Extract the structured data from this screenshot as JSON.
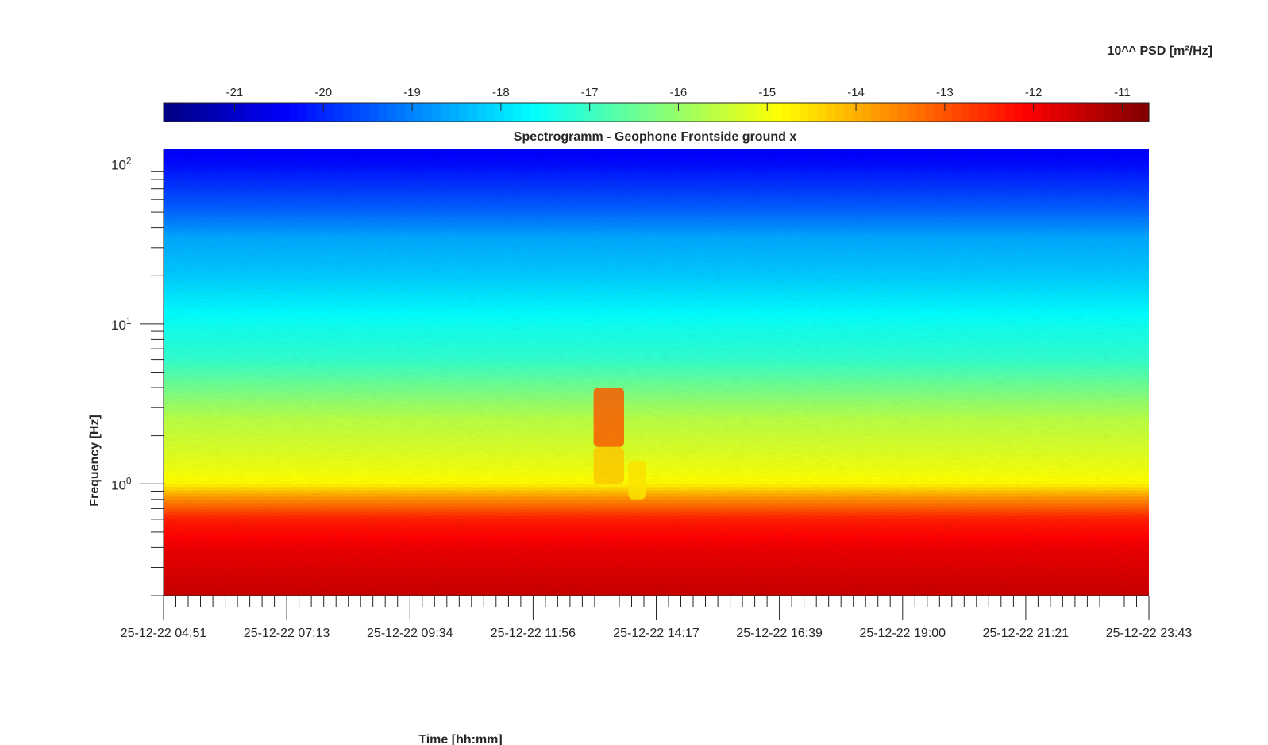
{
  "chart_data": {
    "type": "heatmap",
    "title": "Spectrogramm - Geophone Frontside ground x",
    "xlabel": "Time [hh:mm]",
    "ylabel": "Frequency [Hz]",
    "colorbar": {
      "label": "10^^ PSD [m²/Hz]",
      "ticks": [
        "-21",
        "-20",
        "-19",
        "-18",
        "-17",
        "-16",
        "-15",
        "-14",
        "-13",
        "-12",
        "-11"
      ],
      "tick_values": [
        -21,
        -20,
        -19,
        -18,
        -17,
        -16,
        -15,
        -14,
        -13,
        -12,
        -11
      ],
      "range": [
        -21.8,
        -10.7
      ],
      "colormap": "jet",
      "placement": "top"
    },
    "x_ticks": [
      "25-12-22 04:51",
      "25-12-22 07:13",
      "25-12-22 09:34",
      "25-12-22 11:56",
      "25-12-22 14:17",
      "25-12-22 16:39",
      "25-12-22 19:00",
      "25-12-22 21:21",
      "25-12-22 23:43"
    ],
    "x_minor_per_major": 10,
    "y_scale": "log",
    "y_range": [
      0.2,
      125
    ],
    "y_ticks": [
      {
        "value": 1,
        "base": "10",
        "exp": "0"
      },
      {
        "value": 10,
        "base": "10",
        "exp": "1"
      },
      {
        "value": 100,
        "base": "10",
        "exp": "2"
      }
    ],
    "psd_profile": [
      {
        "freq": 0.2,
        "psd": -11.5
      },
      {
        "freq": 0.4,
        "psd": -11.9
      },
      {
        "freq": 0.6,
        "psd": -12.4
      },
      {
        "freq": 0.8,
        "psd": -13.6
      },
      {
        "freq": 1.0,
        "psd": -14.8
      },
      {
        "freq": 1.5,
        "psd": -15.2
      },
      {
        "freq": 2.5,
        "psd": -15.6
      },
      {
        "freq": 4.0,
        "psd": -16.4
      },
      {
        "freq": 6.0,
        "psd": -17.1
      },
      {
        "freq": 10,
        "psd": -17.5
      },
      {
        "freq": 20,
        "psd": -18.2
      },
      {
        "freq": 35,
        "psd": -18.6
      },
      {
        "freq": 50,
        "psd": -19.3
      },
      {
        "freq": 70,
        "psd": -19.8
      },
      {
        "freq": 100,
        "psd": -20.3
      },
      {
        "freq": 125,
        "psd": -20.5
      }
    ],
    "events": [
      {
        "time_start": "13:05",
        "time_end": "13:40",
        "freq_low": 1.7,
        "freq_high": 4.0,
        "psd": -13.1
      },
      {
        "time_start": "13:05",
        "time_end": "13:40",
        "freq_low": 1.0,
        "freq_high": 1.7,
        "psd": -14.3
      },
      {
        "time_start": "13:45",
        "time_end": "14:05",
        "freq_low": 0.8,
        "freq_high": 1.4,
        "psd": -14.6
      }
    ],
    "grid": false
  }
}
